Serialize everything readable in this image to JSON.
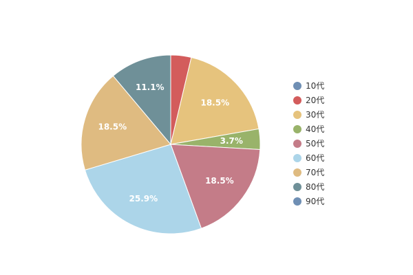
{
  "chart_data": {
    "type": "pie",
    "title": "",
    "legend_position": "right",
    "slices": [
      {
        "name": "10代",
        "value": 0.0,
        "label": "",
        "color": "#6f8fb4"
      },
      {
        "name": "20代",
        "value": 3.7,
        "label": "",
        "color": "#d35c5c"
      },
      {
        "name": "30代",
        "value": 18.5,
        "label": "18.5%",
        "color": "#e6c37d"
      },
      {
        "name": "40代",
        "value": 3.7,
        "label": "3.7%",
        "color": "#99b36a"
      },
      {
        "name": "50代",
        "value": 18.5,
        "label": "18.5%",
        "color": "#c47c88"
      },
      {
        "name": "60代",
        "value": 25.9,
        "label": "25.9%",
        "color": "#acd5e9"
      },
      {
        "name": "70代",
        "value": 18.5,
        "label": "18.5%",
        "color": "#dfbb81"
      },
      {
        "name": "80代",
        "value": 11.1,
        "label": "11.1%",
        "color": "#6f9098"
      },
      {
        "name": "90代",
        "value": 0.0,
        "label": "",
        "color": "#6f8fb4"
      }
    ]
  }
}
